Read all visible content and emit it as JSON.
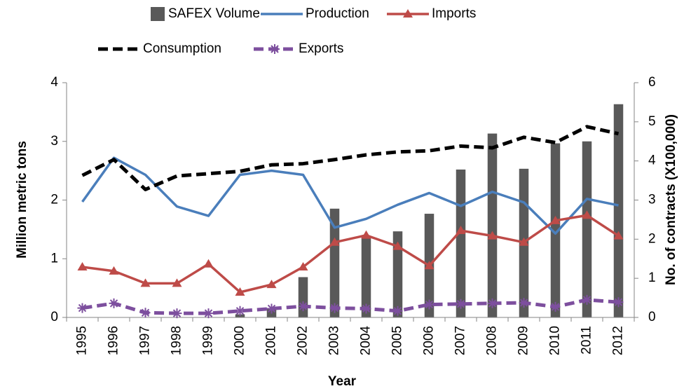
{
  "chart_data": {
    "type": "combo",
    "x_label": "Year",
    "y_label": "Million metric tons",
    "y2_label": "No. of contracts (X100,000)",
    "categories": [
      "1995",
      "1996",
      "1997",
      "1998",
      "1999",
      "2000",
      "2001",
      "2002",
      "2003",
      "2004",
      "2005",
      "2006",
      "2007",
      "2008",
      "2009",
      "2010",
      "2011",
      "2012"
    ],
    "ylim": [
      0,
      4
    ],
    "yticks": [
      0,
      1,
      2,
      3,
      4
    ],
    "y2lim": [
      0,
      6
    ],
    "y2ticks": [
      0,
      1,
      2,
      3,
      4,
      5,
      6
    ],
    "grid": false,
    "series": [
      {
        "name": "SAFEX Volume",
        "type": "bar",
        "axis": "y2",
        "color": "#595959",
        "values": [
          0,
          0,
          0,
          0,
          0,
          0.08,
          0.23,
          1.03,
          2.78,
          2.05,
          2.2,
          2.65,
          3.78,
          4.7,
          3.8,
          4.45,
          4.5,
          5.45
        ]
      },
      {
        "name": "Production",
        "type": "line",
        "color": "#4a7ebb",
        "dashed": false,
        "marker": "none",
        "values": [
          1.97,
          2.72,
          2.43,
          1.89,
          1.73,
          2.43,
          2.5,
          2.43,
          1.53,
          1.68,
          1.92,
          2.12,
          1.9,
          2.14,
          1.96,
          1.43,
          2.02,
          1.91
        ]
      },
      {
        "name": "Imports",
        "type": "line",
        "color": "#be4b48",
        "dashed": false,
        "marker": "triangle",
        "values": [
          0.86,
          0.79,
          0.58,
          0.58,
          0.91,
          0.43,
          0.56,
          0.86,
          1.28,
          1.4,
          1.21,
          0.88,
          1.48,
          1.39,
          1.28,
          1.65,
          1.74,
          1.39
        ]
      },
      {
        "name": "Consumption",
        "type": "line",
        "color": "#000000",
        "dashed": true,
        "marker": "none",
        "values": [
          2.42,
          2.69,
          2.18,
          2.41,
          2.45,
          2.49,
          2.6,
          2.62,
          2.69,
          2.77,
          2.82,
          2.84,
          2.92,
          2.89,
          3.07,
          2.98,
          3.25,
          3.13
        ]
      },
      {
        "name": "Exports",
        "type": "line",
        "color": "#7d4f9e",
        "dashed": true,
        "marker": "asterisk",
        "values": [
          0.16,
          0.24,
          0.08,
          0.07,
          0.07,
          0.11,
          0.15,
          0.19,
          0.16,
          0.15,
          0.11,
          0.22,
          0.23,
          0.24,
          0.25,
          0.18,
          0.3,
          0.26
        ]
      }
    ]
  }
}
